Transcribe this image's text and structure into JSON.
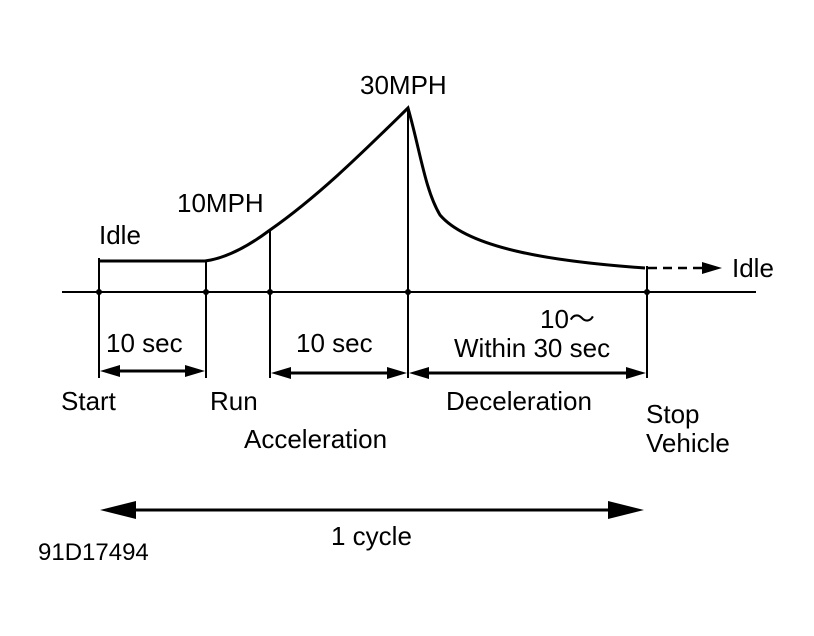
{
  "diagram": {
    "peak_label": "30MPH",
    "mid_speed_label": "10MPH",
    "idle_label_start": "Idle",
    "idle_label_end": "Idle",
    "interval_1_label": "10 sec",
    "interval_2_label": "10 sec",
    "interval_3_label_line1": "10～",
    "interval_3_label_line2": "Within 30 sec",
    "phase_start": "Start",
    "phase_run": "Run",
    "phase_acceleration": "Acceleration",
    "phase_deceleration": "Deceleration",
    "phase_stop_line1": "Stop",
    "phase_stop_line2": "Vehicle",
    "cycle_label": "1 cycle",
    "figure_id": "91D17494"
  }
}
